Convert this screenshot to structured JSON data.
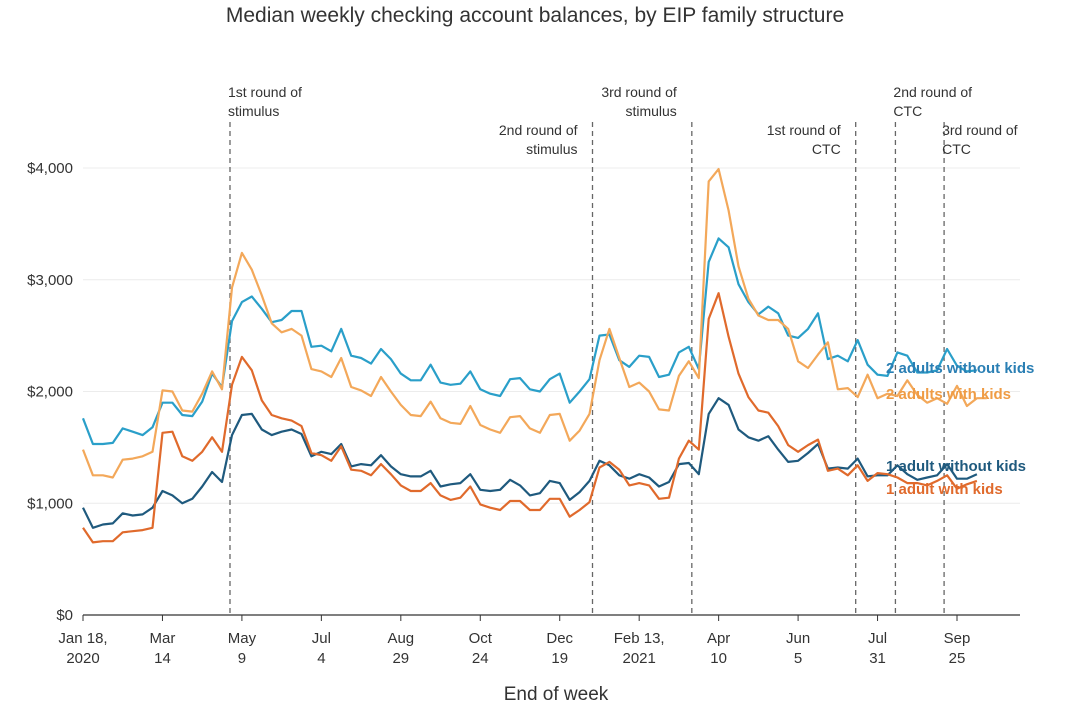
{
  "chart_data": {
    "type": "line",
    "title": "Median weekly checking account balances, by EIP family structure",
    "xlabel": "End of week",
    "ylabel": "",
    "ylim": [
      0,
      4000
    ],
    "x_start_week": 0,
    "x_end_week": 88,
    "y_ticks": [
      {
        "value": 0,
        "label": "$0"
      },
      {
        "value": 1000,
        "label": "$1,000"
      },
      {
        "value": 2000,
        "label": "$2,000"
      },
      {
        "value": 3000,
        "label": "$3,000"
      },
      {
        "value": 4000,
        "label": "$4,000"
      }
    ],
    "x_ticks": [
      {
        "week": 0,
        "line1": "Jan 18,",
        "line2": "2020"
      },
      {
        "week": 8,
        "line1": "Mar",
        "line2": "14"
      },
      {
        "week": 16,
        "line1": "May",
        "line2": "9"
      },
      {
        "week": 24,
        "line1": "Jul",
        "line2": "4"
      },
      {
        "week": 32,
        "line1": "Aug",
        "line2": "29"
      },
      {
        "week": 40,
        "line1": "Oct",
        "line2": "24"
      },
      {
        "week": 48,
        "line1": "Dec",
        "line2": "19"
      },
      {
        "week": 56,
        "line1": "Feb 13,",
        "line2": "2021"
      },
      {
        "week": 64,
        "line1": "Apr",
        "line2": "10"
      },
      {
        "week": 72,
        "line1": "Jun",
        "line2": "5"
      },
      {
        "week": 80,
        "line1": "Jul",
        "line2": "31"
      },
      {
        "week": 88,
        "line1": "Sep",
        "line2": "25"
      }
    ],
    "events": [
      {
        "week": 14.8,
        "line1": "1st round of",
        "line2": "stimulus",
        "anchor": "start",
        "tier": "upper"
      },
      {
        "week": 51.3,
        "line1": "2nd round of",
        "line2": "stimulus",
        "anchor": "end",
        "tier": "lower"
      },
      {
        "week": 61.3,
        "line1": "3rd round of",
        "line2": "stimulus",
        "anchor": "end",
        "tier": "upper"
      },
      {
        "week": 77.8,
        "line1": "1st round of",
        "line2": "CTC",
        "anchor": "end",
        "tier": "lower"
      },
      {
        "week": 81.8,
        "line1": "2nd round of",
        "line2": "CTC",
        "anchor": "start",
        "tier": "upper"
      },
      {
        "week": 86.7,
        "line1": "3rd round of",
        "line2": "CTC",
        "anchor": "start",
        "tier": "lower"
      }
    ],
    "series": [
      {
        "name": "2 adults without kids",
        "color": "#2a9fc9",
        "label_color": "#2a7fb4",
        "values": [
          1760,
          1530,
          1530,
          1540,
          1670,
          1640,
          1610,
          1680,
          1900,
          1900,
          1790,
          1780,
          1910,
          2160,
          2040,
          2630,
          2800,
          2850,
          2740,
          2620,
          2640,
          2720,
          2720,
          2400,
          2410,
          2360,
          2560,
          2320,
          2300,
          2250,
          2380,
          2290,
          2160,
          2100,
          2100,
          2240,
          2080,
          2060,
          2070,
          2180,
          2020,
          1980,
          1960,
          2110,
          2120,
          2020,
          2000,
          2110,
          2160,
          1900,
          2000,
          2110,
          2500,
          2510,
          2280,
          2220,
          2320,
          2310,
          2130,
          2150,
          2350,
          2400,
          2200,
          3160,
          3370,
          3290,
          2960,
          2800,
          2690,
          2760,
          2700,
          2500,
          2480,
          2560,
          2700,
          2290,
          2320,
          2270,
          2460,
          2240,
          2150,
          2140,
          2350,
          2320,
          2170,
          2170,
          2190,
          2380,
          2230,
          2180,
          2190
        ]
      },
      {
        "name": "2 adults with kids",
        "color": "#f3a85a",
        "label_color": "#ef9c45",
        "values": [
          1480,
          1250,
          1250,
          1230,
          1390,
          1400,
          1420,
          1460,
          2010,
          2000,
          1830,
          1820,
          1980,
          2180,
          2020,
          2930,
          3240,
          3090,
          2860,
          2610,
          2530,
          2560,
          2500,
          2200,
          2180,
          2130,
          2300,
          2040,
          2010,
          1960,
          2130,
          2000,
          1880,
          1790,
          1780,
          1910,
          1760,
          1720,
          1710,
          1870,
          1700,
          1660,
          1630,
          1770,
          1780,
          1670,
          1630,
          1790,
          1800,
          1560,
          1650,
          1800,
          2280,
          2560,
          2300,
          2040,
          2080,
          2000,
          1840,
          1830,
          2140,
          2270,
          2120,
          3880,
          3990,
          3620,
          3120,
          2830,
          2680,
          2640,
          2640,
          2560,
          2270,
          2210,
          2330,
          2440,
          2020,
          2030,
          1950,
          2150,
          1940,
          1980,
          1960,
          2100,
          1970,
          1900,
          1940,
          1890,
          2050,
          1870,
          1940,
          1940
        ]
      },
      {
        "name": "1 adult without kids",
        "color": "#1f5a7e",
        "label_color": "#1f5a7e",
        "values": [
          960,
          780,
          810,
          820,
          910,
          890,
          900,
          960,
          1110,
          1070,
          1000,
          1040,
          1150,
          1280,
          1190,
          1610,
          1790,
          1800,
          1660,
          1610,
          1640,
          1660,
          1620,
          1420,
          1460,
          1440,
          1530,
          1330,
          1350,
          1340,
          1430,
          1330,
          1260,
          1240,
          1240,
          1290,
          1150,
          1170,
          1180,
          1260,
          1120,
          1110,
          1120,
          1210,
          1160,
          1070,
          1090,
          1200,
          1180,
          1030,
          1100,
          1200,
          1380,
          1340,
          1250,
          1220,
          1260,
          1230,
          1150,
          1190,
          1350,
          1360,
          1260,
          1800,
          1940,
          1880,
          1660,
          1590,
          1560,
          1600,
          1480,
          1370,
          1380,
          1450,
          1530,
          1310,
          1320,
          1310,
          1400,
          1240,
          1250,
          1250,
          1340,
          1260,
          1210,
          1230,
          1250,
          1350,
          1220,
          1220,
          1260
        ]
      },
      {
        "name": "1 adult with kids",
        "color": "#e06a2c",
        "label_color": "#e06a2c",
        "values": [
          780,
          650,
          660,
          660,
          740,
          750,
          760,
          780,
          1630,
          1640,
          1420,
          1380,
          1460,
          1590,
          1460,
          2060,
          2310,
          2190,
          1920,
          1790,
          1760,
          1740,
          1690,
          1450,
          1430,
          1380,
          1510,
          1300,
          1290,
          1250,
          1350,
          1260,
          1160,
          1110,
          1110,
          1180,
          1070,
          1030,
          1050,
          1150,
          990,
          960,
          940,
          1020,
          1020,
          940,
          940,
          1040,
          1040,
          880,
          940,
          1010,
          1320,
          1370,
          1300,
          1160,
          1180,
          1160,
          1040,
          1050,
          1400,
          1560,
          1480,
          2650,
          2880,
          2490,
          2160,
          1950,
          1830,
          1810,
          1690,
          1520,
          1460,
          1520,
          1570,
          1290,
          1310,
          1250,
          1340,
          1200,
          1270,
          1260,
          1230,
          1180,
          1180,
          1160,
          1200,
          1250,
          1130,
          1170,
          1200
        ]
      }
    ]
  }
}
